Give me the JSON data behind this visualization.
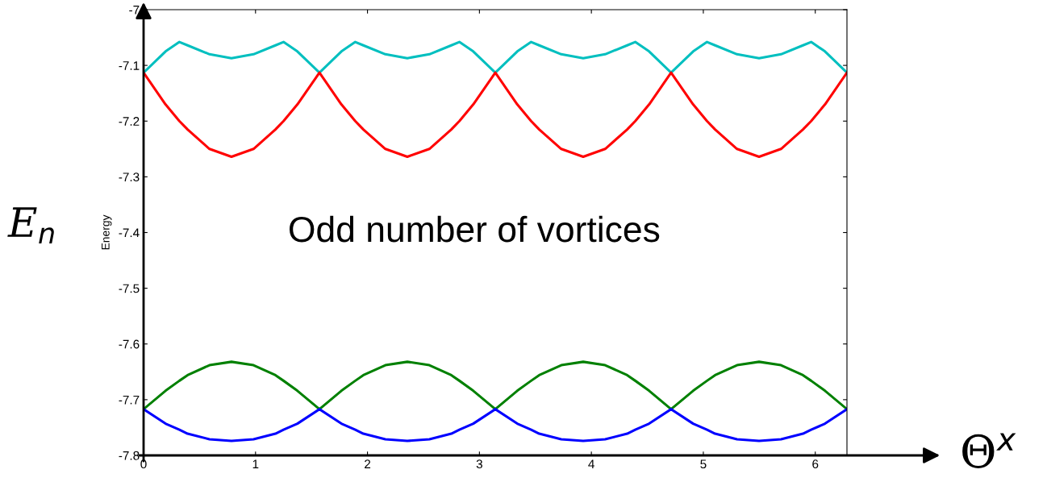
{
  "chart_data": {
    "type": "line",
    "xlabel": "Θ$^{x}$",
    "ylabel": "Energy",
    "annotations": [
      "Odd number of vortices",
      "E$_{n}$"
    ],
    "x": [
      0,
      0.196,
      0.32,
      0.393,
      0.589,
      0.785,
      0.982,
      1.178,
      1.25,
      1.374,
      1.571,
      1.767,
      1.891,
      1.963,
      2.16,
      2.356,
      2.553,
      2.749,
      2.821,
      2.945,
      3.142,
      3.338,
      3.462,
      3.534,
      3.731,
      3.927,
      4.123,
      4.32,
      4.392,
      4.516,
      4.712,
      4.909,
      5.033,
      5.105,
      5.301,
      5.498,
      5.694,
      5.89,
      5.963,
      6.087,
      6.283
    ],
    "series": [
      {
        "color": "#00bfbf",
        "values": [
          -7.113,
          -7.075,
          -7.058,
          -7.064,
          -7.08,
          -7.087,
          -7.08,
          -7.064,
          -7.058,
          -7.075,
          -7.113,
          -7.075,
          -7.058,
          -7.064,
          -7.08,
          -7.087,
          -7.08,
          -7.064,
          -7.058,
          -7.075,
          -7.113,
          -7.075,
          -7.058,
          -7.064,
          -7.08,
          -7.087,
          -7.08,
          -7.064,
          -7.058,
          -7.075,
          -7.113,
          -7.075,
          -7.058,
          -7.064,
          -7.08,
          -7.087,
          -7.08,
          -7.064,
          -7.058,
          -7.075,
          -7.113
        ]
      },
      {
        "color": "#ff0000",
        "values": [
          -7.113,
          -7.17,
          -7.2,
          -7.215,
          -7.25,
          -7.264,
          -7.25,
          -7.215,
          -7.2,
          -7.17,
          -7.113,
          -7.17,
          -7.2,
          -7.215,
          -7.25,
          -7.264,
          -7.25,
          -7.215,
          -7.2,
          -7.17,
          -7.113,
          -7.17,
          -7.2,
          -7.215,
          -7.25,
          -7.264,
          -7.25,
          -7.215,
          -7.2,
          -7.17,
          -7.113,
          -7.17,
          -7.2,
          -7.215,
          -7.25,
          -7.264,
          -7.25,
          -7.215,
          -7.2,
          -7.17,
          -7.113
        ]
      },
      {
        "color": "#008000",
        "values": [
          -7.717,
          -7.684,
          -7.666,
          -7.656,
          -7.638,
          -7.632,
          -7.638,
          -7.656,
          -7.666,
          -7.684,
          -7.717,
          -7.684,
          -7.666,
          -7.656,
          -7.638,
          -7.632,
          -7.638,
          -7.656,
          -7.666,
          -7.684,
          -7.717,
          -7.684,
          -7.666,
          -7.656,
          -7.638,
          -7.632,
          -7.638,
          -7.656,
          -7.666,
          -7.684,
          -7.717,
          -7.684,
          -7.666,
          -7.656,
          -7.638,
          -7.632,
          -7.638,
          -7.656,
          -7.666,
          -7.684,
          -7.717
        ]
      },
      {
        "color": "#0000ff",
        "values": [
          -7.717,
          -7.743,
          -7.754,
          -7.761,
          -7.771,
          -7.774,
          -7.771,
          -7.761,
          -7.754,
          -7.743,
          -7.717,
          -7.743,
          -7.754,
          -7.761,
          -7.771,
          -7.774,
          -7.771,
          -7.761,
          -7.754,
          -7.743,
          -7.717,
          -7.743,
          -7.754,
          -7.761,
          -7.771,
          -7.774,
          -7.771,
          -7.761,
          -7.754,
          -7.743,
          -7.717,
          -7.743,
          -7.754,
          -7.761,
          -7.771,
          -7.774,
          -7.771,
          -7.761,
          -7.754,
          -7.743,
          -7.717
        ]
      }
    ],
    "xlim": [
      0,
      6.283
    ],
    "xticks": [
      0,
      1,
      2,
      3,
      4,
      5,
      6
    ],
    "ylim": [
      -7.8,
      -7
    ],
    "yticks": [
      -7.8,
      -7.7,
      -7.6,
      -7.5,
      -7.4,
      -7.3,
      -7.2,
      -7.1,
      -7
    ]
  }
}
